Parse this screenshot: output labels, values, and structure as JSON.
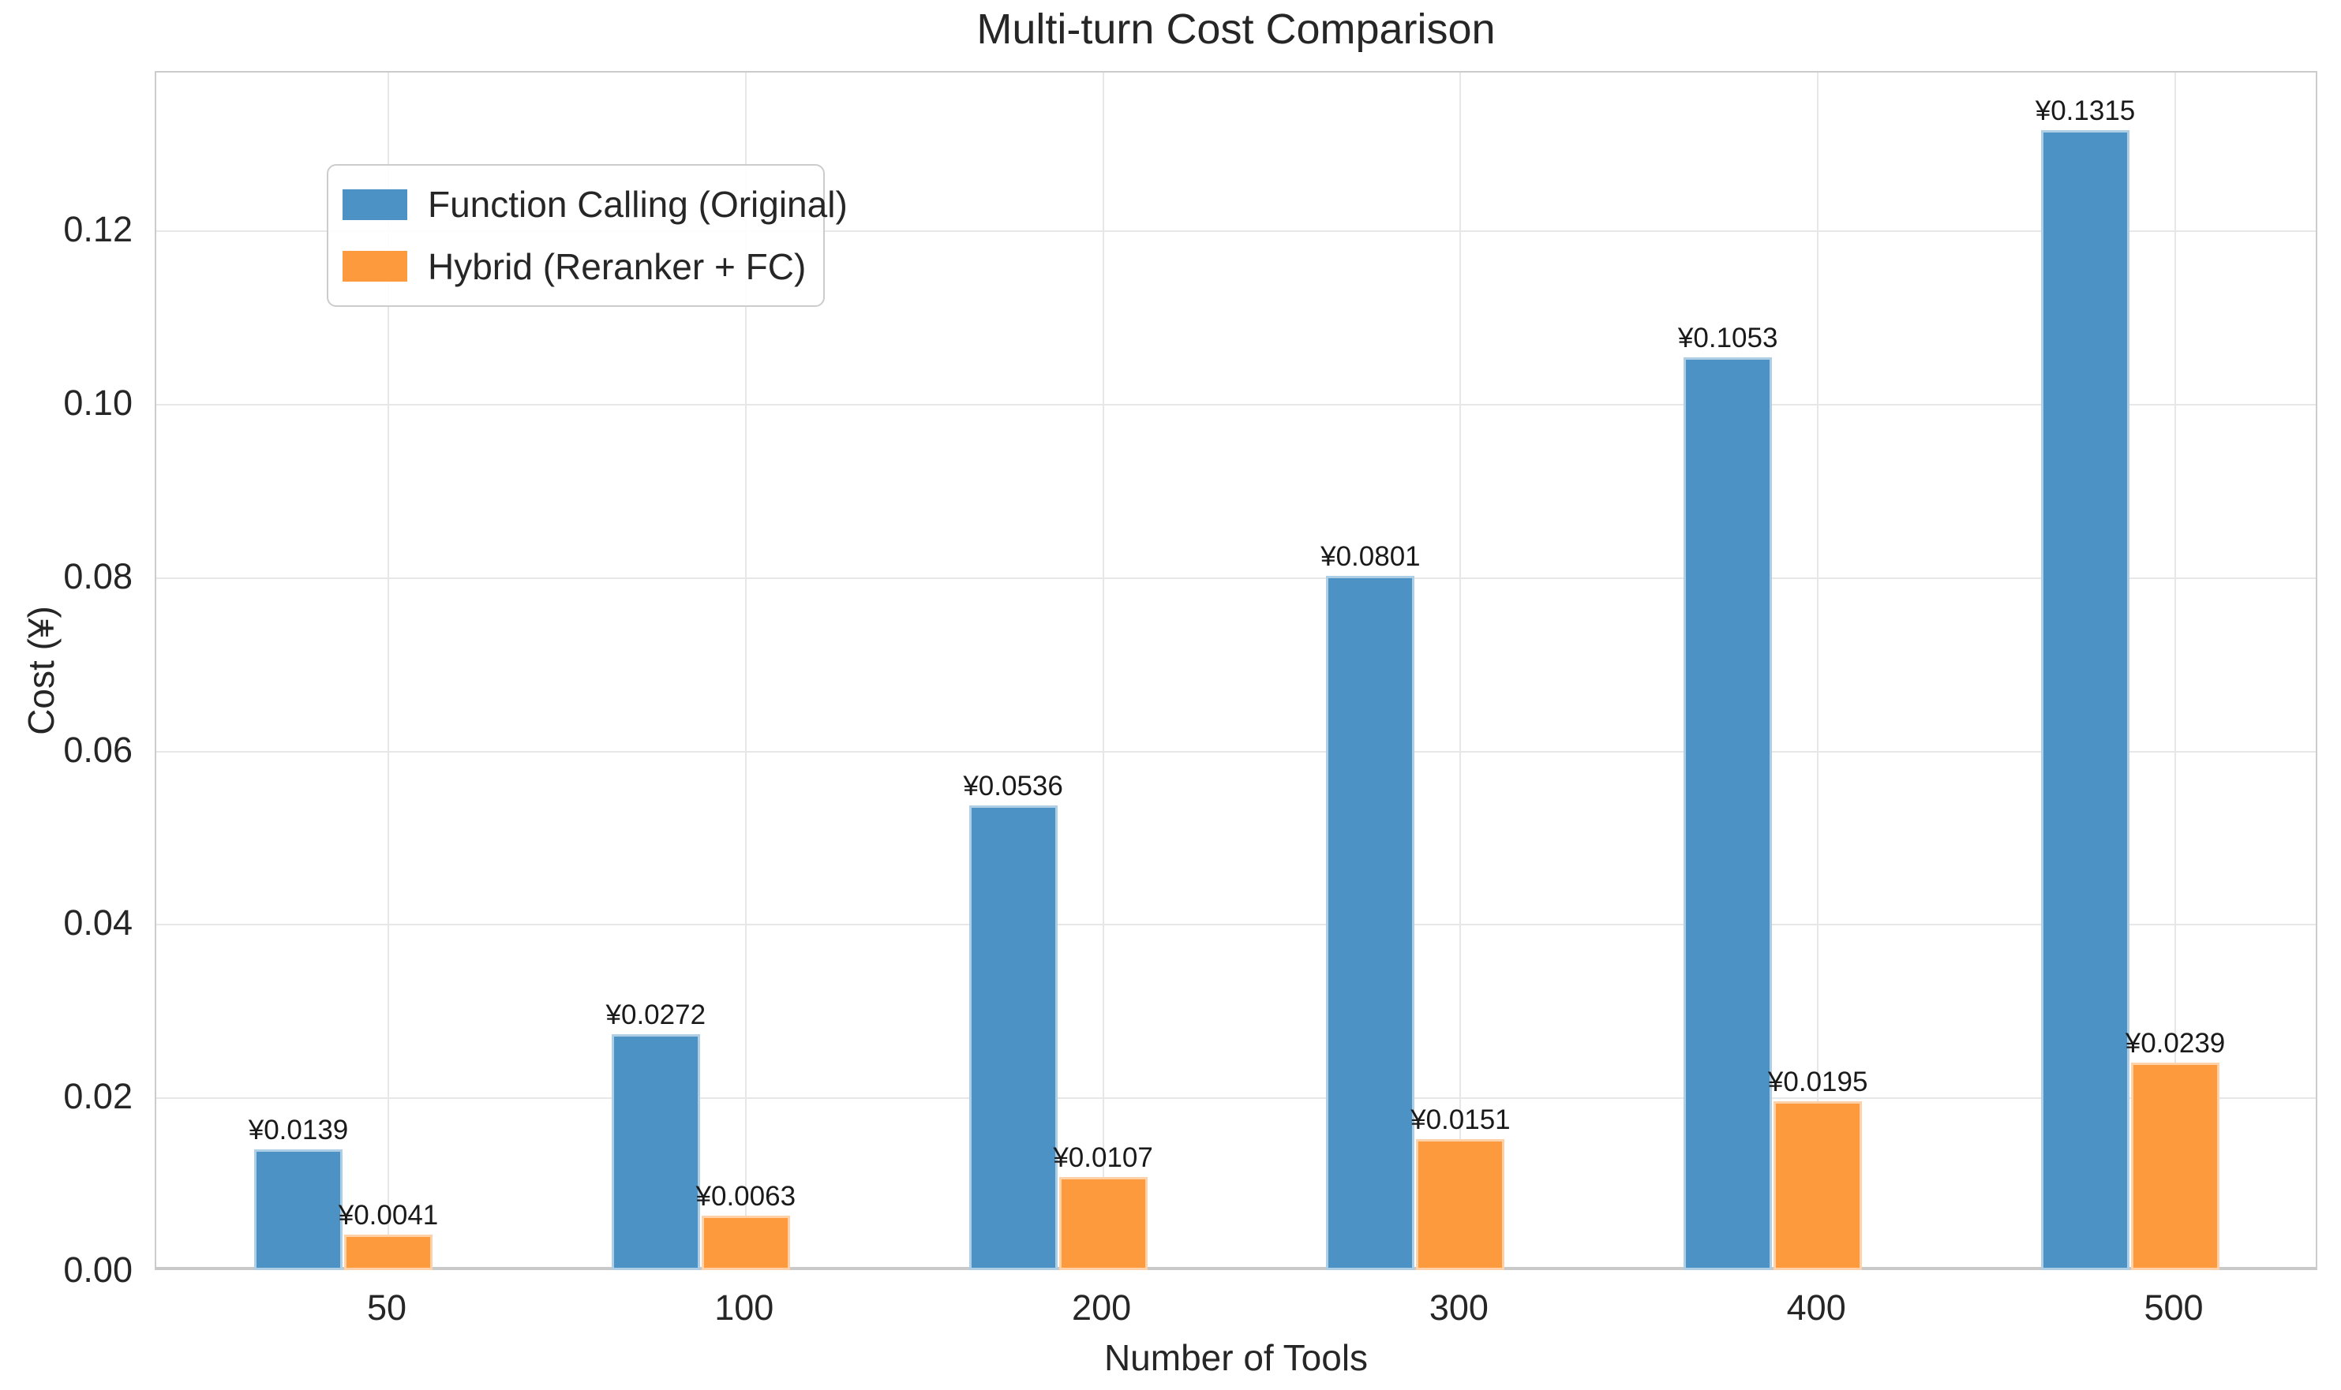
{
  "title": "Multi-turn Cost Comparison",
  "chart_data": {
    "type": "bar",
    "title": "Multi-turn Cost Comparison",
    "xlabel": "Number of Tools",
    "ylabel": "Cost (¥)",
    "categories": [
      "50",
      "100",
      "200",
      "300",
      "400",
      "500"
    ],
    "series": [
      {
        "name": "Function Calling (Original)",
        "color": "#4C92C5",
        "values": [
          0.0139,
          0.0272,
          0.0536,
          0.0801,
          0.1053,
          0.1315
        ],
        "labels": [
          "¥0.0139",
          "¥0.0272",
          "¥0.0536",
          "¥0.0801",
          "¥0.1053",
          "¥0.1315"
        ]
      },
      {
        "name": "Hybrid (Reranker + FC)",
        "color": "#FD9A3E",
        "values": [
          0.0041,
          0.0063,
          0.0107,
          0.0151,
          0.0195,
          0.0239
        ],
        "labels": [
          "¥0.0041",
          "¥0.0063",
          "¥0.0107",
          "¥0.0151",
          "¥0.0195",
          "¥0.0239"
        ]
      }
    ],
    "yticks": [
      "0.00",
      "0.02",
      "0.04",
      "0.06",
      "0.08",
      "0.10",
      "0.12"
    ],
    "ylim": [
      0,
      0.1383
    ],
    "grid": true,
    "legend_position": "upper left"
  }
}
